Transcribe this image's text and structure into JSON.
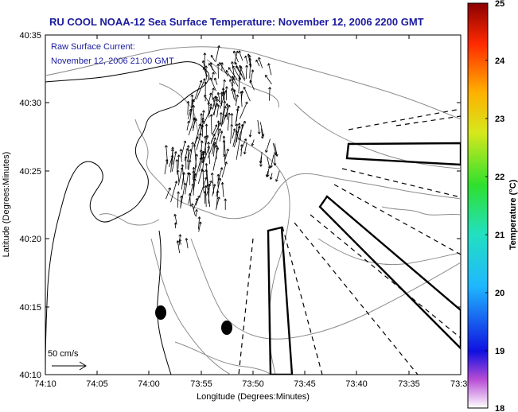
{
  "title": "RU COOL  NOAA-12  Sea Surface Temperature:  November 12, 2006 2200 GMT",
  "current_label": "Raw Surface Current:",
  "current_time": "November 12, 2006 21:00 GMT",
  "scale_label": "50 cm/s",
  "x_axis_title": "Longitude (Degrees:Minutes)",
  "y_axis_title": "Latitude (Degrees:Minutes)",
  "x_ticks": [
    "74:10",
    "74:05",
    "74:00",
    "73:55",
    "73:50",
    "73:45",
    "73:40",
    "73:35",
    "73:3"
  ],
  "y_ticks": [
    "40:35",
    "40:30",
    "40:25",
    "40:20",
    "40:15",
    "40:10"
  ],
  "colorbar": {
    "label": "Temperature (°C)",
    "ticks": [
      "25",
      "24",
      "23",
      "22",
      "21",
      "20",
      "19",
      "18"
    ],
    "range": [
      18,
      25
    ]
  },
  "colors": {
    "title": "#1a1a9e",
    "contour": "#8c8c8c",
    "coast": "#000000",
    "arrows": "#000000"
  }
}
